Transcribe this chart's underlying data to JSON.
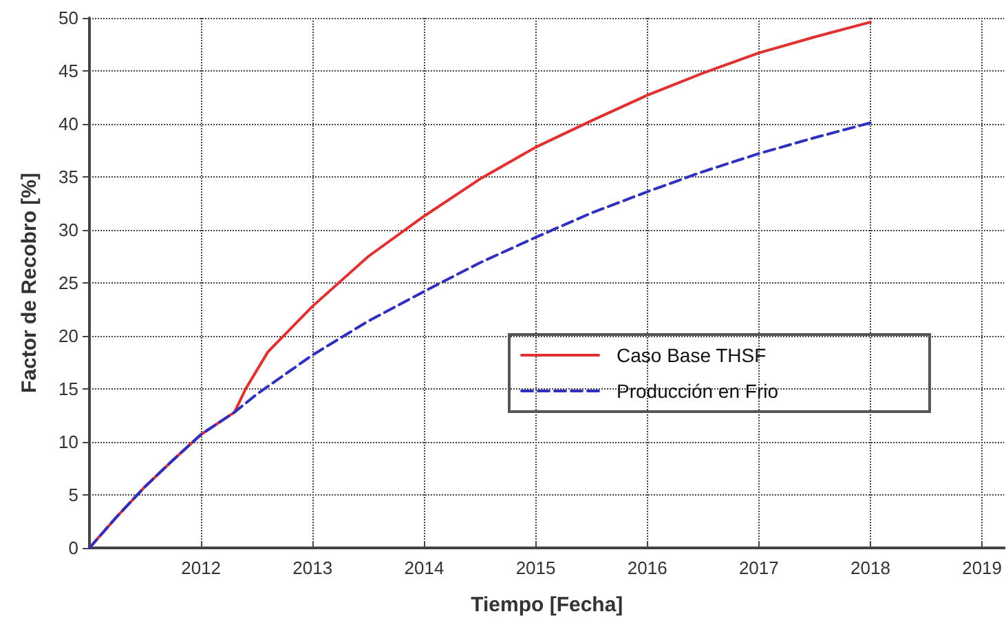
{
  "chart_data": {
    "type": "line",
    "xlabel": "Tiempo [Fecha]",
    "ylabel": "Factor de Recobro [%]",
    "xlim": [
      2011,
      2019.2
    ],
    "xticks": [
      2012,
      2013,
      2014,
      2015,
      2016,
      2017,
      2018,
      2019
    ],
    "ylim": [
      0,
      50
    ],
    "yticks": [
      0,
      5,
      10,
      15,
      20,
      25,
      30,
      35,
      40,
      45,
      50
    ],
    "grid": true,
    "legend": "right",
    "marker": "none",
    "series": [
      {
        "name": "Caso Base THSF",
        "color": "#e03030",
        "line_style": "solid",
        "x": [
          2011,
          2011.25,
          2011.5,
          2011.75,
          2012,
          2012.3,
          2012.4,
          2012.6,
          2013,
          2013.5,
          2014,
          2014.5,
          2015,
          2015.5,
          2016,
          2016.5,
          2017,
          2017.5,
          2018
        ],
        "values": [
          0,
          3,
          5.8,
          8.3,
          10.7,
          12.8,
          15,
          18.5,
          22.8,
          27.5,
          31.3,
          34.8,
          37.8,
          40.3,
          42.7,
          44.8,
          46.7,
          48.2,
          49.6
        ]
      },
      {
        "name": "Producción en Frio",
        "color": "#3030c0",
        "line_style": "dashed",
        "x": [
          2011,
          2011.25,
          2011.5,
          2011.75,
          2012,
          2012.3,
          2012.5,
          2013,
          2013.5,
          2014,
          2014.5,
          2015,
          2015.5,
          2016,
          2016.5,
          2017,
          2017.5,
          2018
        ],
        "values": [
          0,
          3,
          5.8,
          8.3,
          10.7,
          12.8,
          14.5,
          18.2,
          21.4,
          24.2,
          26.9,
          29.3,
          31.6,
          33.6,
          35.5,
          37.2,
          38.7,
          40.1
        ]
      }
    ]
  }
}
